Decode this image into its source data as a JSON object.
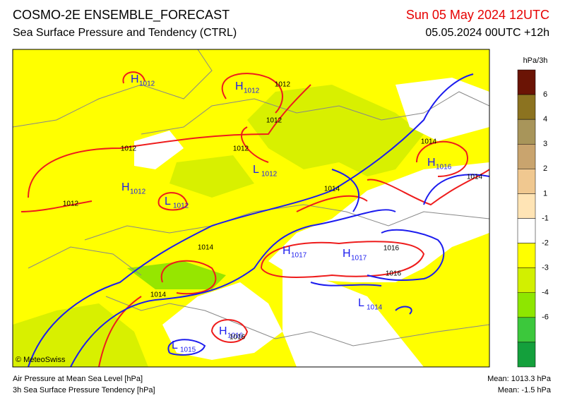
{
  "header": {
    "title": "COSMO-2E ENSEMBLE_FORECAST",
    "subtitle": "Sea Surface Pressure and Tendency (CTRL)",
    "valid_time": "Sun 05 May 2024 12UTC",
    "run_time": "05.05.2024 00UTC +12h"
  },
  "legend": {
    "unit": "hPa/3h",
    "labels": [
      "6",
      "4",
      "3",
      "2",
      "1",
      "-1",
      "-2",
      "-3",
      "-4",
      "-6"
    ],
    "colors": [
      "#6b1405",
      "#8c7320",
      "#a8955a",
      "#c9a46e",
      "#f0c890",
      "#ffe4b5",
      "#ffffff",
      "#ffff00",
      "#d2f000",
      "#8ee600",
      "#3cc83c",
      "#14a03c"
    ]
  },
  "map": {
    "centers": [
      {
        "letter": "H",
        "value": "1012"
      },
      {
        "letter": "H",
        "value": "1012"
      },
      {
        "letter": "L",
        "value": "1012"
      },
      {
        "letter": "H",
        "value": "1012"
      },
      {
        "letter": "L",
        "value": "1012"
      },
      {
        "letter": "H",
        "value": "1016"
      },
      {
        "letter": "H",
        "value": "1017"
      },
      {
        "letter": "H",
        "value": "1017"
      },
      {
        "letter": "L",
        "value": "1014"
      },
      {
        "letter": "H",
        "value": "1016"
      },
      {
        "letter": "L",
        "value": "1015"
      }
    ],
    "contour_labels": [
      "1012",
      "1012",
      "1012",
      "1012",
      "1012",
      "1014",
      "1014",
      "1014",
      "1014",
      "1016",
      "1016",
      "1014",
      "1016"
    ]
  },
  "footer": {
    "copyright": "© MeteoSwiss",
    "line1": "Air Pressure at Mean Sea Level [hPa]",
    "line2": "3h Sea Surface Pressure Tendency [hPa]",
    "mean1": "Mean: 1013.3 hPa",
    "mean2": "Mean:  -1.5 hPa"
  }
}
